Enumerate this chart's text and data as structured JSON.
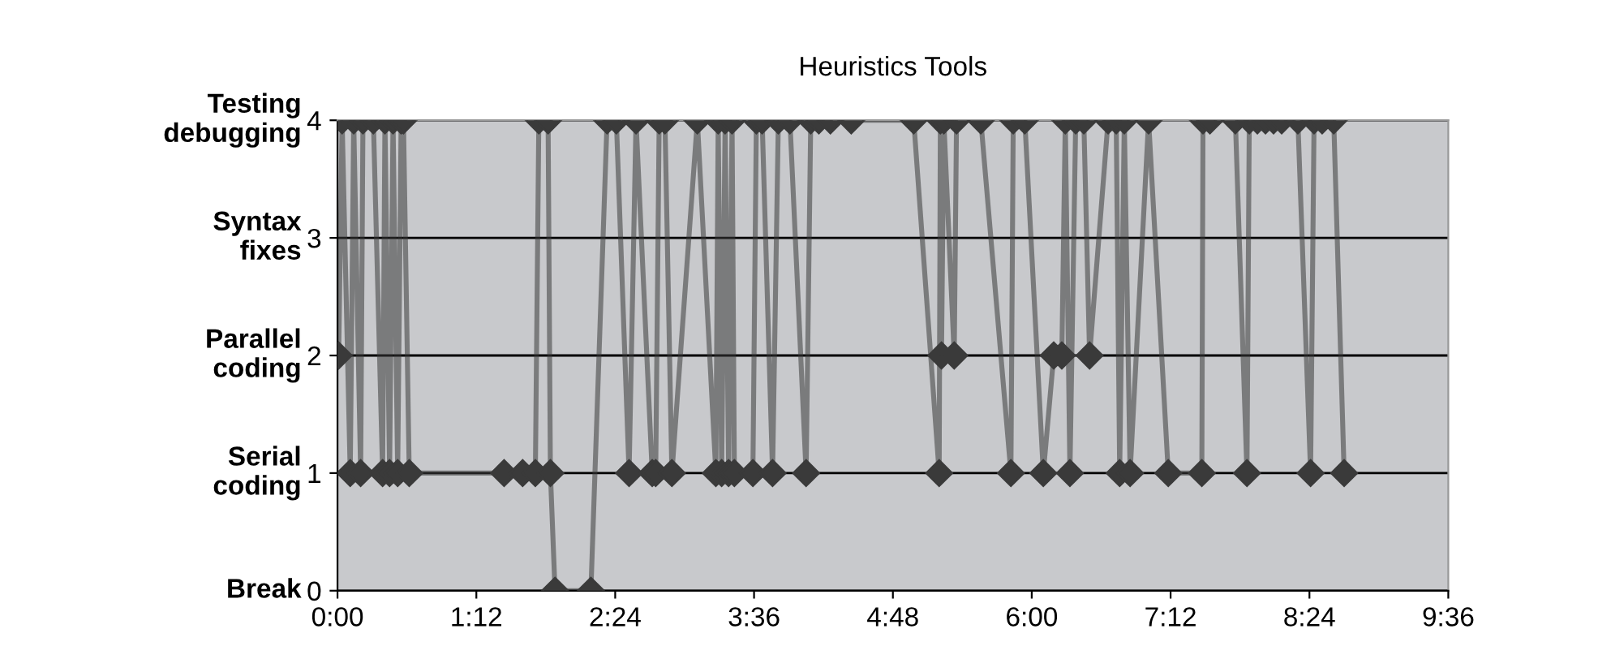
{
  "chart_data": {
    "type": "line",
    "title": "Heuristics Tools",
    "xlim": [
      0,
      9.6
    ],
    "xticks": [
      {
        "value": 0,
        "label": "0:00"
      },
      {
        "value": 1.2,
        "label": "1:12"
      },
      {
        "value": 2.4,
        "label": "2:24"
      },
      {
        "value": 3.6,
        "label": "3:36"
      },
      {
        "value": 4.8,
        "label": "4:48"
      },
      {
        "value": 6.0,
        "label": "6:00"
      },
      {
        "value": 7.2,
        "label": "7:12"
      },
      {
        "value": 8.4,
        "label": "8:24"
      },
      {
        "value": 9.6,
        "label": "9:36"
      }
    ],
    "ylim": [
      0,
      4
    ],
    "yticks": [
      0,
      1,
      2,
      3,
      4
    ],
    "grid": "y",
    "marker": "diamond",
    "line_style": "solid",
    "annotations": [
      "Testing\ndebugging",
      "Syntax\nfixes",
      "Parallel\ncoding",
      "Serial\ncoding",
      "Break"
    ],
    "series": [
      {
        "color": "#3a3a3a",
        "x": [
          0.01,
          0.04,
          0.11,
          0.14,
          0.2,
          0.22,
          0.31,
          0.39,
          0.41,
          0.45,
          0.48,
          0.52,
          0.55,
          0.57,
          0.62,
          1.44,
          1.6,
          1.71,
          1.74,
          1.82,
          1.84,
          1.88,
          2.19,
          2.33,
          2.41,
          2.52,
          2.58,
          2.72,
          2.75,
          2.78,
          2.83,
          2.89,
          3.11,
          3.27,
          3.29,
          3.32,
          3.35,
          3.38,
          3.41,
          3.43,
          3.59,
          3.62,
          3.67,
          3.76,
          3.81,
          3.91,
          4.05,
          4.09,
          4.16,
          4.26,
          4.44,
          4.98,
          5.2,
          5.21,
          5.22,
          5.24,
          5.33,
          5.35,
          5.56,
          5.82,
          5.84,
          5.94,
          6.1,
          6.19,
          6.26,
          6.29,
          6.33,
          6.38,
          6.45,
          6.5,
          6.66,
          6.73,
          6.76,
          6.8,
          6.85,
          7.01,
          7.18,
          7.47,
          7.48,
          7.54,
          7.76,
          7.86,
          7.88,
          7.95,
          8.02,
          8.09,
          8.16,
          8.3,
          8.41,
          8.44,
          8.51,
          8.61,
          8.7
        ],
        "values": [
          2,
          4,
          1,
          4,
          1,
          4,
          4,
          1,
          4,
          1,
          4,
          1,
          4,
          4,
          1,
          1,
          1,
          1,
          4,
          4,
          1,
          0,
          0,
          4,
          4,
          1,
          4,
          1,
          1,
          4,
          4,
          1,
          4,
          1,
          4,
          1,
          4,
          1,
          4,
          1,
          1,
          4,
          4,
          1,
          4,
          4,
          1,
          4,
          4,
          4,
          4,
          4,
          1,
          4,
          2,
          4,
          2,
          4,
          4,
          1,
          4,
          4,
          1,
          2,
          2,
          4,
          1,
          4,
          4,
          2,
          4,
          4,
          1,
          4,
          1,
          4,
          1,
          1,
          4,
          4,
          4,
          1,
          4,
          4,
          4,
          4,
          4,
          4,
          1,
          4,
          4,
          4,
          1
        ]
      }
    ]
  }
}
